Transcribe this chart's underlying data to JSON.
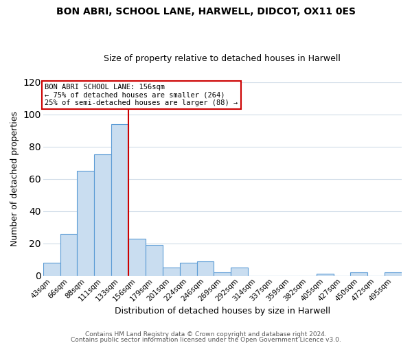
{
  "title1": "BON ABRI, SCHOOL LANE, HARWELL, DIDCOT, OX11 0ES",
  "title2": "Size of property relative to detached houses in Harwell",
  "xlabel": "Distribution of detached houses by size in Harwell",
  "ylabel": "Number of detached properties",
  "bar_labels": [
    "43sqm",
    "66sqm",
    "88sqm",
    "111sqm",
    "133sqm",
    "156sqm",
    "179sqm",
    "201sqm",
    "224sqm",
    "246sqm",
    "269sqm",
    "292sqm",
    "314sqm",
    "337sqm",
    "359sqm",
    "382sqm",
    "405sqm",
    "427sqm",
    "450sqm",
    "472sqm",
    "495sqm"
  ],
  "bar_values": [
    8,
    26,
    65,
    75,
    94,
    23,
    19,
    5,
    8,
    9,
    2,
    5,
    0,
    0,
    0,
    0,
    1,
    0,
    2,
    0,
    2
  ],
  "bar_color": "#c9ddf0",
  "bar_edge_color": "#5b9bd5",
  "vline_color": "#cc0000",
  "annotation_line1": "BON ABRI SCHOOL LANE: 156sqm",
  "annotation_line2": "← 75% of detached houses are smaller (264)",
  "annotation_line3": "25% of semi-detached houses are larger (88) →",
  "annotation_box_edge": "#cc0000",
  "ylim": [
    0,
    120
  ],
  "yticks": [
    0,
    20,
    40,
    60,
    80,
    100,
    120
  ],
  "footer1": "Contains HM Land Registry data © Crown copyright and database right 2024.",
  "footer2": "Contains public sector information licensed under the Open Government Licence v3.0.",
  "background_color": "#ffffff",
  "grid_color": "#d0dce8"
}
